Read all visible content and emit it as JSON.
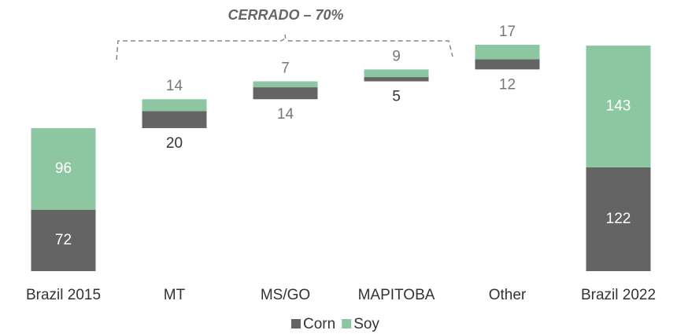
{
  "chart_data": {
    "type": "waterfall",
    "annotation": "CERRADO – 70%",
    "categories": [
      "Brazil 2015",
      "MT",
      "MS/GO",
      "MAPITOBA",
      "Other",
      "Brazil 2022"
    ],
    "series": [
      {
        "name": "Corn",
        "color": "#646464",
        "values": [
          72,
          20,
          14,
          5,
          12,
          122
        ]
      },
      {
        "name": "Soy",
        "color": "#8dc7a2",
        "values": [
          96,
          14,
          7,
          9,
          17,
          143
        ]
      }
    ]
  }
}
